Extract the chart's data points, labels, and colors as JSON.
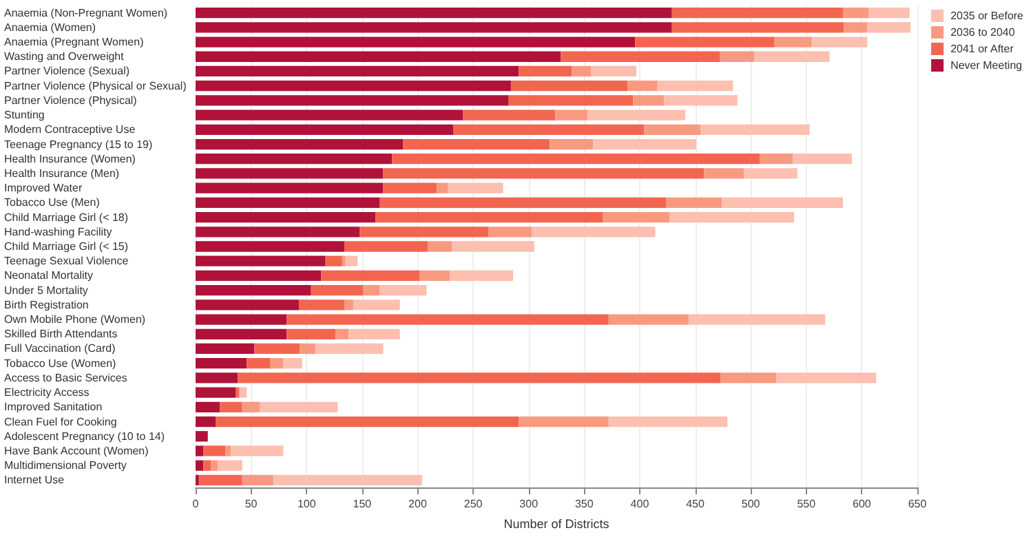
{
  "chart_data": {
    "type": "bar",
    "orientation": "horizontal",
    "stacked": true,
    "xlabel": "Number of Districts",
    "categories": [
      "Anaemia (Non-Pregnant Women)",
      "Anaemia (Women)",
      "Anaemia (Pregnant Women)",
      "Wasting and Overweight",
      "Partner Violence (Sexual)",
      "Partner Violence (Physical or Sexual)",
      "Partner Violence (Physical)",
      "Stunting",
      "Modern Contraceptive Use",
      "Teenage Pregnancy (15 to 19)",
      "Health Insurance (Women)",
      "Health Insurance (Men)",
      "Improved Water",
      "Tobacco Use (Men)",
      "Child Marriage Girl (< 18)",
      "Hand-washing Facility",
      "Child Marriage Girl (< 15)",
      "Teenage Sexual Violence",
      "Neonatal Mortality",
      "Under 5 Mortality",
      "Birth Registration",
      "Own Mobile Phone (Women)",
      "Skilled Birth Attendants",
      "Full Vaccination (Card)",
      "Tobacco Use (Women)",
      "Access to Basic Services",
      "Electricity Access",
      "Improved Sanitation",
      "Clean Fuel for Cooking",
      "Adolescent Pregnancy (10 to 14)",
      "Have Bank Account (Women)",
      "Multidimensional Poverty",
      "Internet Use"
    ],
    "series": [
      {
        "name": "Never Meeting",
        "color": "#b0123a",
        "values": [
          429,
          429,
          396,
          329,
          291,
          284,
          282,
          241,
          232,
          187,
          177,
          169,
          169,
          166,
          162,
          148,
          134,
          117,
          113,
          104,
          93,
          82,
          82,
          53,
          46,
          38,
          36,
          22,
          18,
          11,
          7,
          7,
          3
        ]
      },
      {
        "name": "2041 or After",
        "color": "#f26650",
        "values": [
          154,
          155,
          125,
          143,
          48,
          105,
          112,
          83,
          172,
          132,
          331,
          289,
          48,
          258,
          205,
          116,
          75,
          15,
          89,
          47,
          41,
          290,
          44,
          41,
          21,
          435,
          3,
          20,
          273,
          0,
          20,
          7,
          39
        ]
      },
      {
        "name": "2036 to 2040",
        "color": "#f89a80",
        "values": [
          23,
          21,
          34,
          31,
          17,
          27,
          28,
          29,
          51,
          39,
          30,
          36,
          10,
          50,
          60,
          39,
          22,
          3,
          27,
          15,
          8,
          72,
          12,
          14,
          12,
          50,
          1,
          16,
          81,
          0,
          5,
          6,
          28
        ]
      },
      {
        "name": "2035 or Before",
        "color": "#fcbfb0",
        "values": [
          37,
          39,
          50,
          68,
          41,
          68,
          66,
          88,
          98,
          93,
          53,
          48,
          50,
          109,
          112,
          111,
          74,
          11,
          57,
          42,
          42,
          123,
          46,
          61,
          17,
          90,
          6,
          70,
          107,
          0,
          47,
          22,
          134
        ]
      }
    ],
    "xlim": [
      0,
      650
    ],
    "xticks": [
      0,
      50,
      100,
      150,
      200,
      250,
      300,
      350,
      400,
      450,
      500,
      550,
      600,
      650
    ],
    "grid": "x",
    "legend": "top right"
  }
}
